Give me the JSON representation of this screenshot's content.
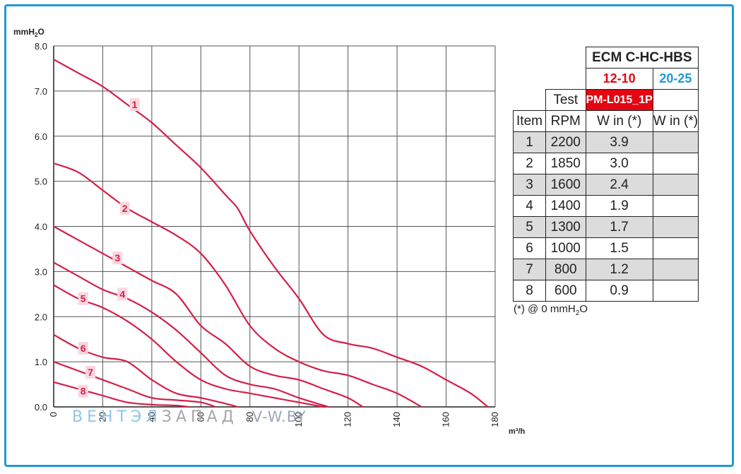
{
  "chart_data": {
    "type": "line",
    "ylabel": "mmH2O",
    "xlabel": "m³/h",
    "xlim": [
      0,
      180
    ],
    "ylim": [
      0,
      8
    ],
    "x_ticks": [
      "0",
      "20",
      "40",
      "60",
      "80",
      "100",
      "120",
      "140",
      "160",
      "180"
    ],
    "y_ticks": [
      "0.0",
      "1.0",
      "2.0",
      "3.0",
      "4.0",
      "5.0",
      "6.0",
      "7.0",
      "8.0"
    ],
    "grid": true,
    "curve_color": "#d41f48",
    "label_bg": "#fbd5df",
    "series": [
      {
        "name": "1",
        "label_at": [
          33,
          6.7
        ],
        "points": [
          [
            0,
            7.7
          ],
          [
            10,
            7.4
          ],
          [
            20,
            7.1
          ],
          [
            30,
            6.7
          ],
          [
            40,
            6.3
          ],
          [
            50,
            5.8
          ],
          [
            60,
            5.3
          ],
          [
            70,
            4.7
          ],
          [
            75,
            4.4
          ],
          [
            80,
            3.9
          ],
          [
            90,
            3.1
          ],
          [
            100,
            2.4
          ],
          [
            110,
            1.6
          ],
          [
            120,
            1.4
          ],
          [
            130,
            1.3
          ],
          [
            140,
            1.1
          ],
          [
            150,
            0.9
          ],
          [
            160,
            0.6
          ],
          [
            170,
            0.3
          ],
          [
            177,
            0.0
          ]
        ]
      },
      {
        "name": "2",
        "label_at": [
          29,
          4.4
        ],
        "points": [
          [
            0,
            5.4
          ],
          [
            10,
            5.2
          ],
          [
            20,
            4.8
          ],
          [
            30,
            4.4
          ],
          [
            40,
            4.1
          ],
          [
            50,
            3.8
          ],
          [
            60,
            3.4
          ],
          [
            70,
            2.7
          ],
          [
            80,
            1.8
          ],
          [
            90,
            1.3
          ],
          [
            100,
            1.0
          ],
          [
            110,
            0.8
          ],
          [
            120,
            0.7
          ],
          [
            130,
            0.5
          ],
          [
            140,
            0.3
          ],
          [
            150,
            0.0
          ]
        ]
      },
      {
        "name": "3",
        "label_at": [
          26,
          3.3
        ],
        "points": [
          [
            0,
            4.0
          ],
          [
            10,
            3.7
          ],
          [
            20,
            3.4
          ],
          [
            30,
            3.1
          ],
          [
            40,
            2.8
          ],
          [
            50,
            2.5
          ],
          [
            60,
            1.8
          ],
          [
            70,
            1.4
          ],
          [
            80,
            0.9
          ],
          [
            90,
            0.7
          ],
          [
            100,
            0.6
          ],
          [
            110,
            0.4
          ],
          [
            120,
            0.2
          ],
          [
            126,
            0.0
          ]
        ]
      },
      {
        "name": "4",
        "label_at": [
          28,
          2.5
        ],
        "points": [
          [
            0,
            3.2
          ],
          [
            10,
            2.9
          ],
          [
            20,
            2.6
          ],
          [
            30,
            2.4
          ],
          [
            40,
            2.1
          ],
          [
            50,
            1.7
          ],
          [
            60,
            1.2
          ],
          [
            70,
            0.7
          ],
          [
            80,
            0.5
          ],
          [
            90,
            0.4
          ],
          [
            100,
            0.2
          ],
          [
            112,
            0.0
          ]
        ]
      },
      {
        "name": "5",
        "label_at": [
          12,
          2.4
        ],
        "points": [
          [
            0,
            2.7
          ],
          [
            10,
            2.4
          ],
          [
            20,
            2.2
          ],
          [
            30,
            1.9
          ],
          [
            40,
            1.5
          ],
          [
            50,
            1.0
          ],
          [
            60,
            0.6
          ],
          [
            70,
            0.4
          ],
          [
            80,
            0.3
          ],
          [
            90,
            0.2
          ],
          [
            100,
            0.1
          ],
          [
            110,
            0.0
          ]
        ]
      },
      {
        "name": "6",
        "label_at": [
          12,
          1.3
        ],
        "points": [
          [
            0,
            1.6
          ],
          [
            10,
            1.3
          ],
          [
            20,
            1.1
          ],
          [
            30,
            1.0
          ],
          [
            40,
            0.6
          ],
          [
            50,
            0.3
          ],
          [
            60,
            0.2
          ],
          [
            68,
            0.1
          ],
          [
            75,
            0.0
          ]
        ]
      },
      {
        "name": "7",
        "label_at": [
          15,
          0.77
        ],
        "points": [
          [
            0,
            1.0
          ],
          [
            10,
            0.8
          ],
          [
            20,
            0.6
          ],
          [
            30,
            0.4
          ],
          [
            40,
            0.2
          ],
          [
            50,
            0.15
          ],
          [
            60,
            0.1
          ],
          [
            66,
            0.0
          ]
        ]
      },
      {
        "name": "8",
        "label_at": [
          12,
          0.35
        ],
        "points": [
          [
            0,
            0.55
          ],
          [
            10,
            0.4
          ],
          [
            20,
            0.25
          ],
          [
            30,
            0.1
          ],
          [
            40,
            0.05
          ],
          [
            50,
            0.03
          ],
          [
            55,
            0.0
          ]
        ]
      }
    ]
  },
  "chart_text": {
    "ylabel": "mmH",
    "ylabel_sub": "2",
    "ylabel_end": "O",
    "xlabel": "m³/h"
  },
  "table": {
    "model": "ECM C-HC-HBS",
    "size_a": "12-10",
    "size_b": "20-25",
    "test_label": "Test",
    "test_value": "PM-L015_1P",
    "col_item": "Item",
    "col_rpm": "RPM",
    "col_w_a": "W in (*)",
    "col_w_b": "W in (*)",
    "rows": [
      {
        "item": "1",
        "rpm": "2200",
        "w_a": "3.9",
        "w_b": ""
      },
      {
        "item": "2",
        "rpm": "1850",
        "w_a": "3.0",
        "w_b": ""
      },
      {
        "item": "3",
        "rpm": "1600",
        "w_a": "2.4",
        "w_b": ""
      },
      {
        "item": "4",
        "rpm": "1400",
        "w_a": "1.9",
        "w_b": ""
      },
      {
        "item": "5",
        "rpm": "1300",
        "w_a": "1.7",
        "w_b": ""
      },
      {
        "item": "6",
        "rpm": "1000",
        "w_a": "1.5",
        "w_b": ""
      },
      {
        "item": "7",
        "rpm": "800",
        "w_a": "1.2",
        "w_b": ""
      },
      {
        "item": "8",
        "rpm": "600",
        "w_a": "0.9",
        "w_b": ""
      }
    ]
  },
  "note": {
    "prefix": "(*) @ 0 mmH",
    "sub": "2",
    "suffix": "O"
  },
  "watermark": {
    "part1": "ВЕНТЭЛ",
    "part2": "ЗАПАД",
    "site": "V-W.BY"
  }
}
